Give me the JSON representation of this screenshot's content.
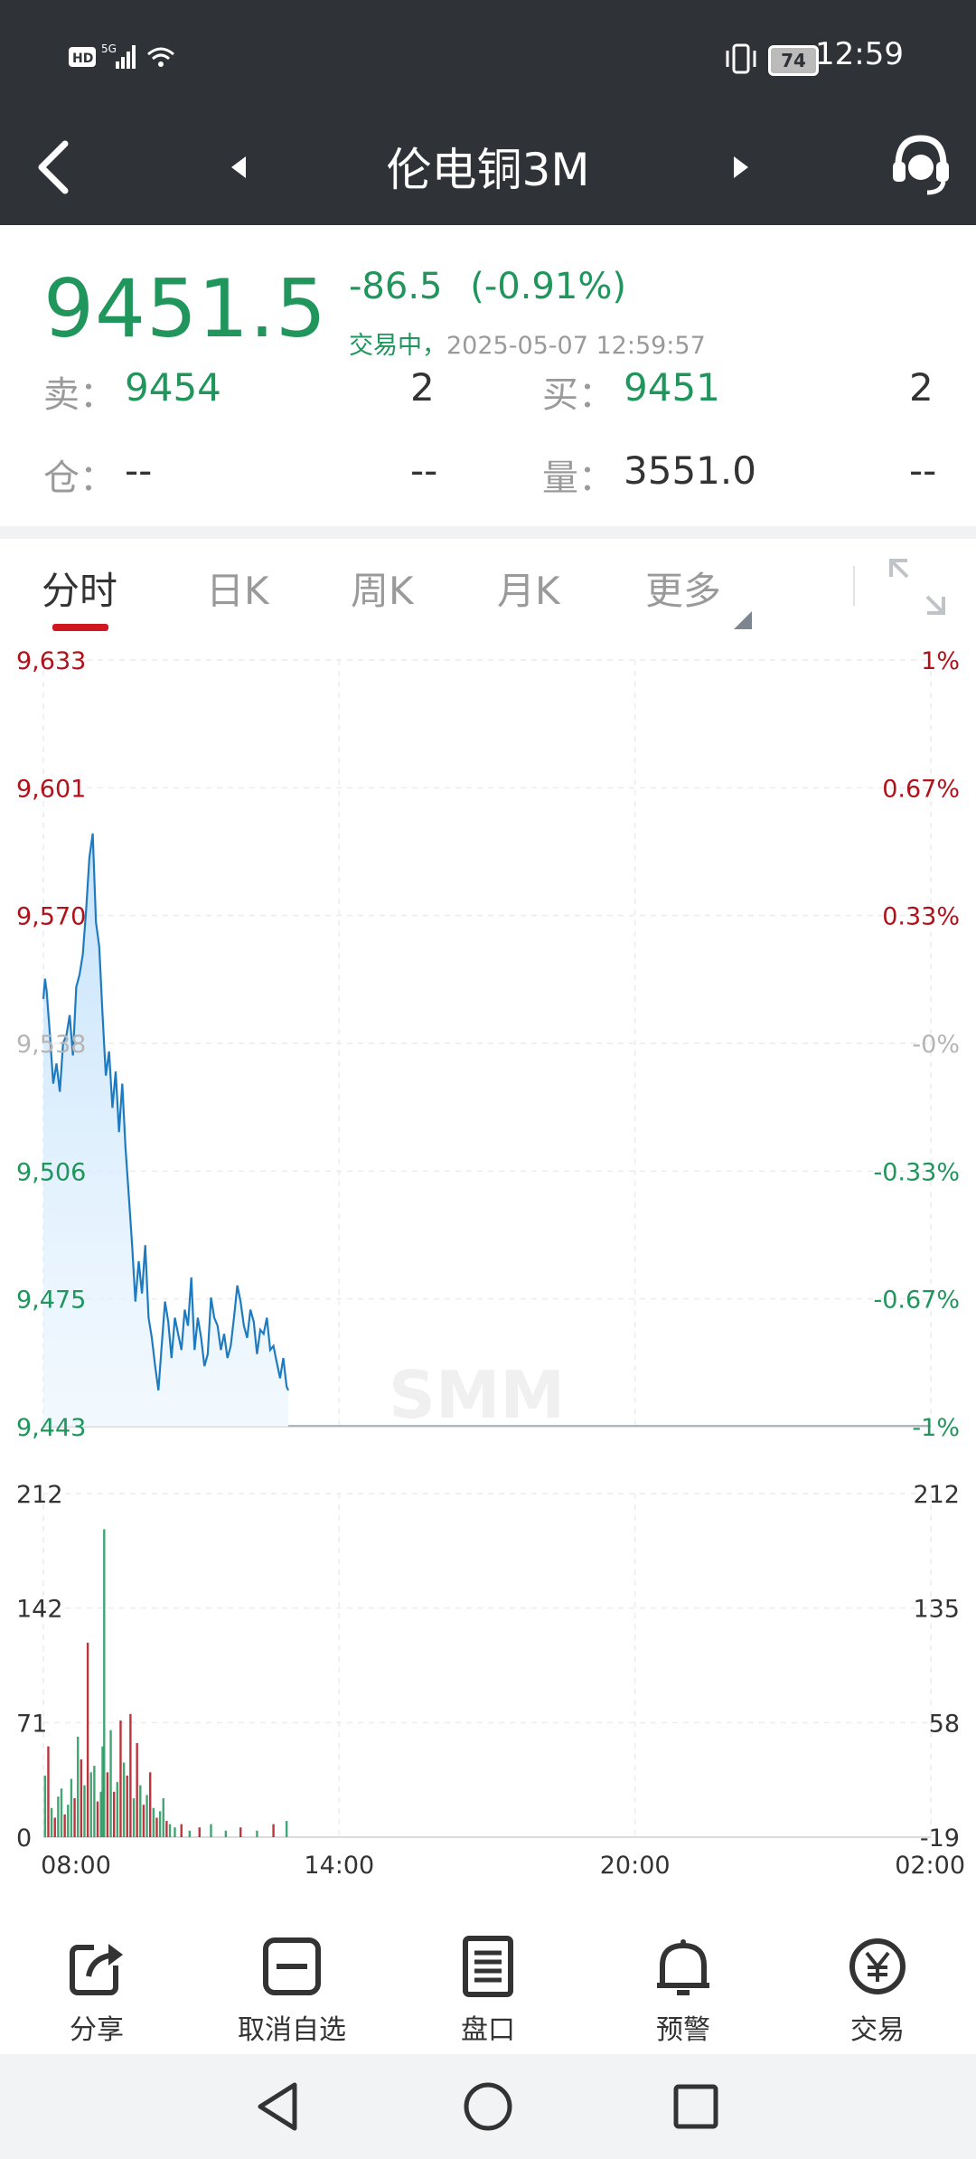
{
  "status_bar": {
    "left_icons": "HD 5G",
    "battery": "74",
    "time": "12:59"
  },
  "header": {
    "back_icon": "back-chevron-icon",
    "title": "伦电铜3M",
    "prev_icon": "triangle-left-icon",
    "next_icon": "triangle-right-icon",
    "service_icon": "customer-service-headset-icon"
  },
  "quote": {
    "last_price": "9451.5",
    "change": "-86.5",
    "change_pct": "(-0.91%)",
    "status": "交易中，",
    "datetime": "2025-05-07 12:59:57",
    "sell_label": "卖：",
    "sell_price": "9454",
    "sell_qty": "2",
    "buy_label": "买：",
    "buy_price": "9451",
    "buy_qty": "2",
    "oi_label": "仓：",
    "oi_value": "--",
    "oi_change": "--",
    "vol_label": "量：",
    "vol_value": "3551.0",
    "vol_change": "--"
  },
  "tabs": [
    "分时",
    "日K",
    "周K",
    "月K",
    "更多"
  ],
  "colors": {
    "up": "#b0121b",
    "down": "#20955c",
    "line": "#1f7bc0",
    "header_bg": "#2f3338"
  },
  "chart_data": {
    "type": "line",
    "title": "",
    "price_axis": {
      "left_ticks": [
        "9,633",
        "9,601",
        "9,570",
        "9,538",
        "9,506",
        "9,475",
        "9,443"
      ],
      "right_ticks": [
        "1%",
        "0.67%",
        "0.33%",
        "-0%",
        "-0.33%",
        "-0.67%",
        "-1%"
      ],
      "ylim": [
        9443,
        9633
      ]
    },
    "volume_axis": {
      "left_ticks": [
        "212",
        "142",
        "71",
        "0"
      ],
      "right_ticks": [
        "212",
        "135",
        "58",
        "-19"
      ],
      "ylim": [
        0,
        212
      ]
    },
    "x_ticks": [
      "08:00",
      "14:00",
      "20:00",
      "02:00"
    ],
    "price_series": {
      "name": "",
      "x_minutes_from_0800": [
        0,
        2,
        4,
        8,
        12,
        16,
        20,
        24,
        28,
        32,
        36,
        40,
        44,
        48,
        52,
        56,
        60,
        64,
        68,
        72,
        76,
        80,
        84,
        88,
        92,
        96,
        100,
        104,
        108,
        112,
        116,
        120,
        124,
        128,
        132,
        136,
        140,
        144,
        148,
        152,
        156,
        160,
        164,
        168,
        172,
        176,
        180,
        184,
        188,
        192,
        196,
        200,
        204,
        208,
        212,
        216,
        220,
        224,
        228,
        232,
        236,
        240,
        244,
        248,
        252,
        256,
        260,
        264,
        268,
        272,
        276,
        280,
        284,
        288,
        292,
        296,
        298
      ],
      "values": [
        9549,
        9554,
        9551,
        9540,
        9528,
        9533,
        9526,
        9538,
        9540,
        9545,
        9535,
        9552,
        9555,
        9560,
        9571,
        9584,
        9590,
        9568,
        9562,
        9545,
        9530,
        9536,
        9522,
        9531,
        9516,
        9528,
        9512,
        9500,
        9488,
        9474,
        9484,
        9476,
        9488,
        9470,
        9465,
        9458,
        9452,
        9463,
        9474,
        9469,
        9460,
        9470,
        9466,
        9462,
        9472,
        9468,
        9480,
        9462,
        9470,
        9465,
        9458,
        9461,
        9475,
        9470,
        9468,
        9462,
        9466,
        9460,
        9463,
        9470,
        9478,
        9474,
        9468,
        9465,
        9472,
        9469,
        9461,
        9467,
        9466,
        9470,
        9462,
        9463,
        9459,
        9455,
        9460,
        9453,
        9452
      ],
      "baseline": 9538
    },
    "volume_series": {
      "name": "",
      "x_minutes_from_0800": [
        2,
        6,
        10,
        14,
        18,
        22,
        26,
        30,
        34,
        38,
        42,
        46,
        50,
        54,
        58,
        62,
        66,
        70,
        72,
        74,
        78,
        82,
        86,
        90,
        94,
        98,
        102,
        106,
        110,
        114,
        118,
        122,
        126,
        130,
        134,
        138,
        142,
        146,
        150,
        154,
        160,
        168,
        178,
        190,
        204,
        222,
        240,
        260,
        280,
        296
      ],
      "values": [
        38,
        56,
        18,
        12,
        25,
        30,
        14,
        20,
        36,
        24,
        62,
        48,
        32,
        120,
        40,
        44,
        22,
        28,
        56,
        190,
        40,
        66,
        28,
        34,
        72,
        46,
        38,
        76,
        24,
        58,
        32,
        20,
        26,
        40,
        18,
        12,
        16,
        24,
        10,
        8,
        6,
        8,
        4,
        6,
        8,
        4,
        6,
        4,
        8,
        10
      ],
      "direction": [
        "g",
        "r",
        "g",
        "r",
        "g",
        "g",
        "r",
        "g",
        "g",
        "r",
        "g",
        "r",
        "g",
        "r",
        "g",
        "g",
        "r",
        "g",
        "g",
        "g",
        "r",
        "g",
        "r",
        "g",
        "r",
        "g",
        "r",
        "r",
        "g",
        "r",
        "g",
        "r",
        "g",
        "r",
        "g",
        "r",
        "g",
        "g",
        "r",
        "g",
        "g",
        "r",
        "g",
        "r",
        "g",
        "g",
        "r",
        "g",
        "r",
        "g"
      ]
    },
    "session_end_minutes": 1080,
    "grid": true,
    "watermark": "SMM"
  },
  "bottom_nav": [
    {
      "label": "分享",
      "icon": "share-icon"
    },
    {
      "label": "取消自选",
      "icon": "remove-watchlist-icon"
    },
    {
      "label": "盘口",
      "icon": "order-book-icon"
    },
    {
      "label": "预警",
      "icon": "bell-alert-icon"
    },
    {
      "label": "交易",
      "icon": "yen-circle-icon"
    }
  ],
  "system_nav": {
    "back": "nav-back-icon",
    "home": "nav-home-icon",
    "recents": "nav-recents-icon"
  }
}
